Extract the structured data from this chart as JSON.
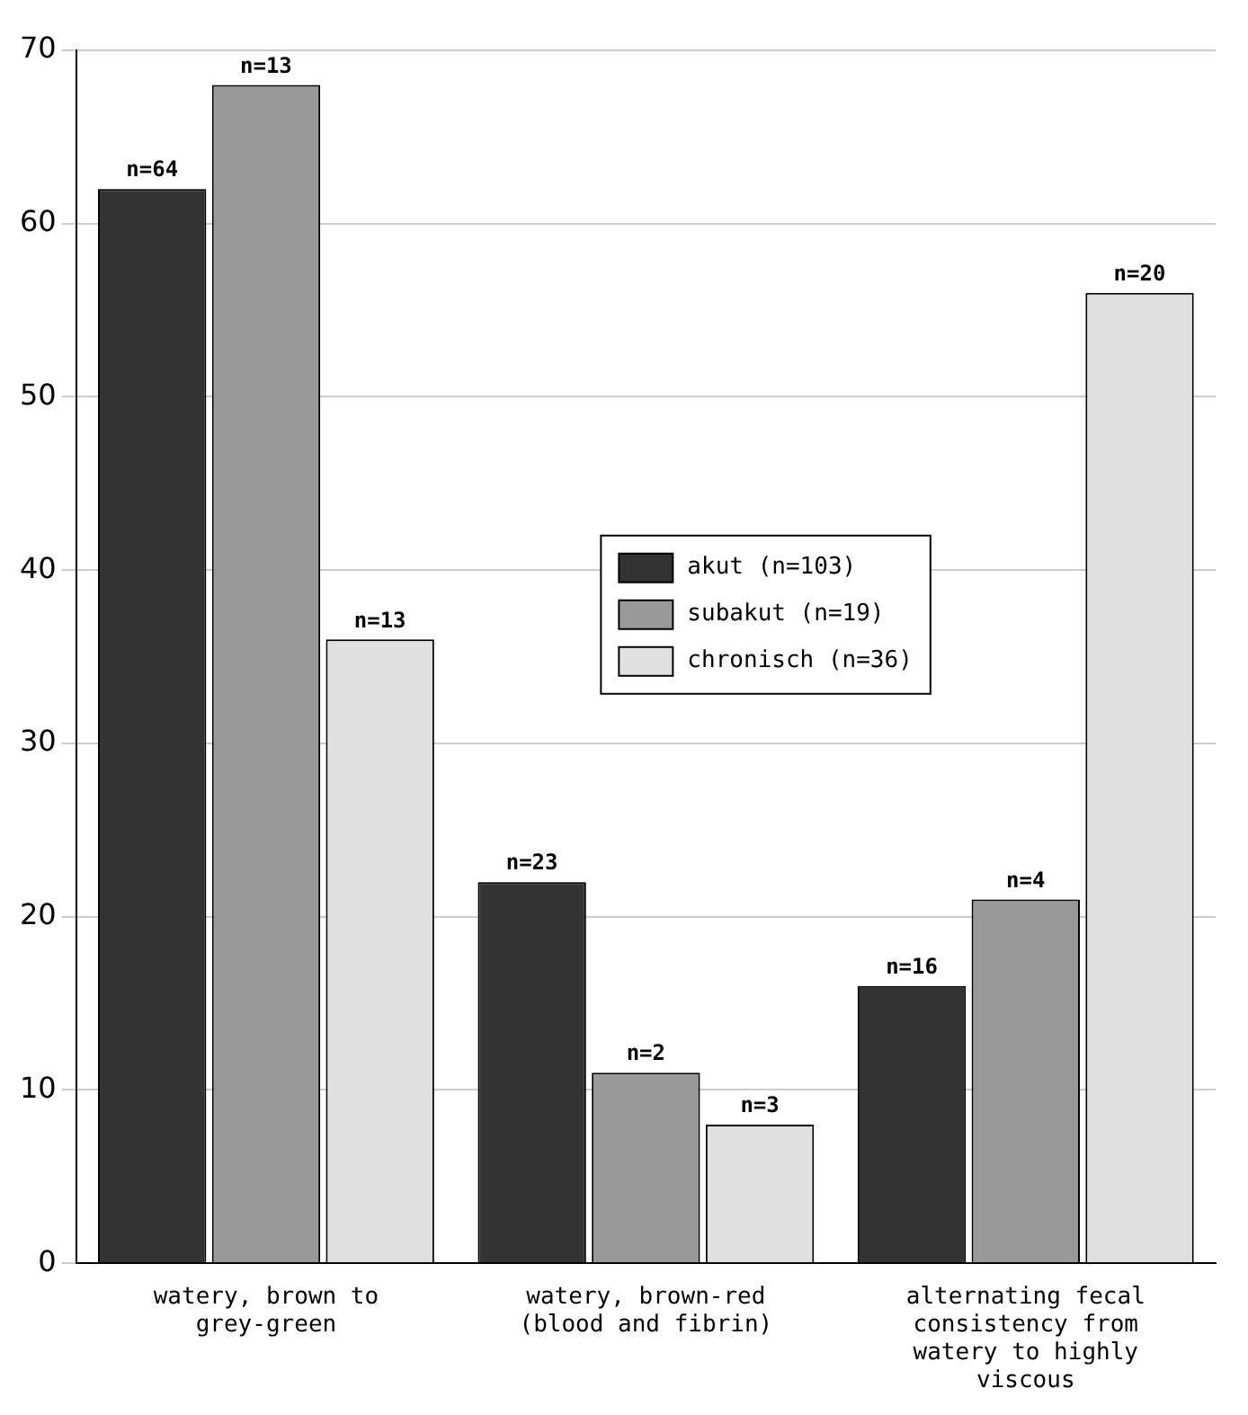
{
  "chart_data": {
    "type": "bar",
    "categories": [
      "watery, brown to grey-green",
      "watery, brown-red (blood and fibrin)",
      "alternating fecal consistency from watery to highly viscous"
    ],
    "series": [
      {
        "name": "akut (n=103)",
        "color": "#333333",
        "values": [
          62,
          22,
          16
        ]
      },
      {
        "name": "subakut (n=19)",
        "color": "#999999",
        "values": [
          68,
          11,
          21
        ]
      },
      {
        "name": "chronisch (n=36)",
        "color": "#e0e0e0",
        "values": [
          36,
          8,
          56
        ]
      }
    ],
    "annotations": [
      "n=64",
      "n=13",
      "n=13",
      "n=23",
      "n=2",
      "n=3",
      "n=16",
      "n=4",
      "n=20"
    ],
    "ylim": [
      0,
      70
    ],
    "yticks": [
      0,
      10,
      20,
      30,
      40,
      50,
      60,
      70
    ],
    "grid": "y",
    "legend": "center"
  }
}
